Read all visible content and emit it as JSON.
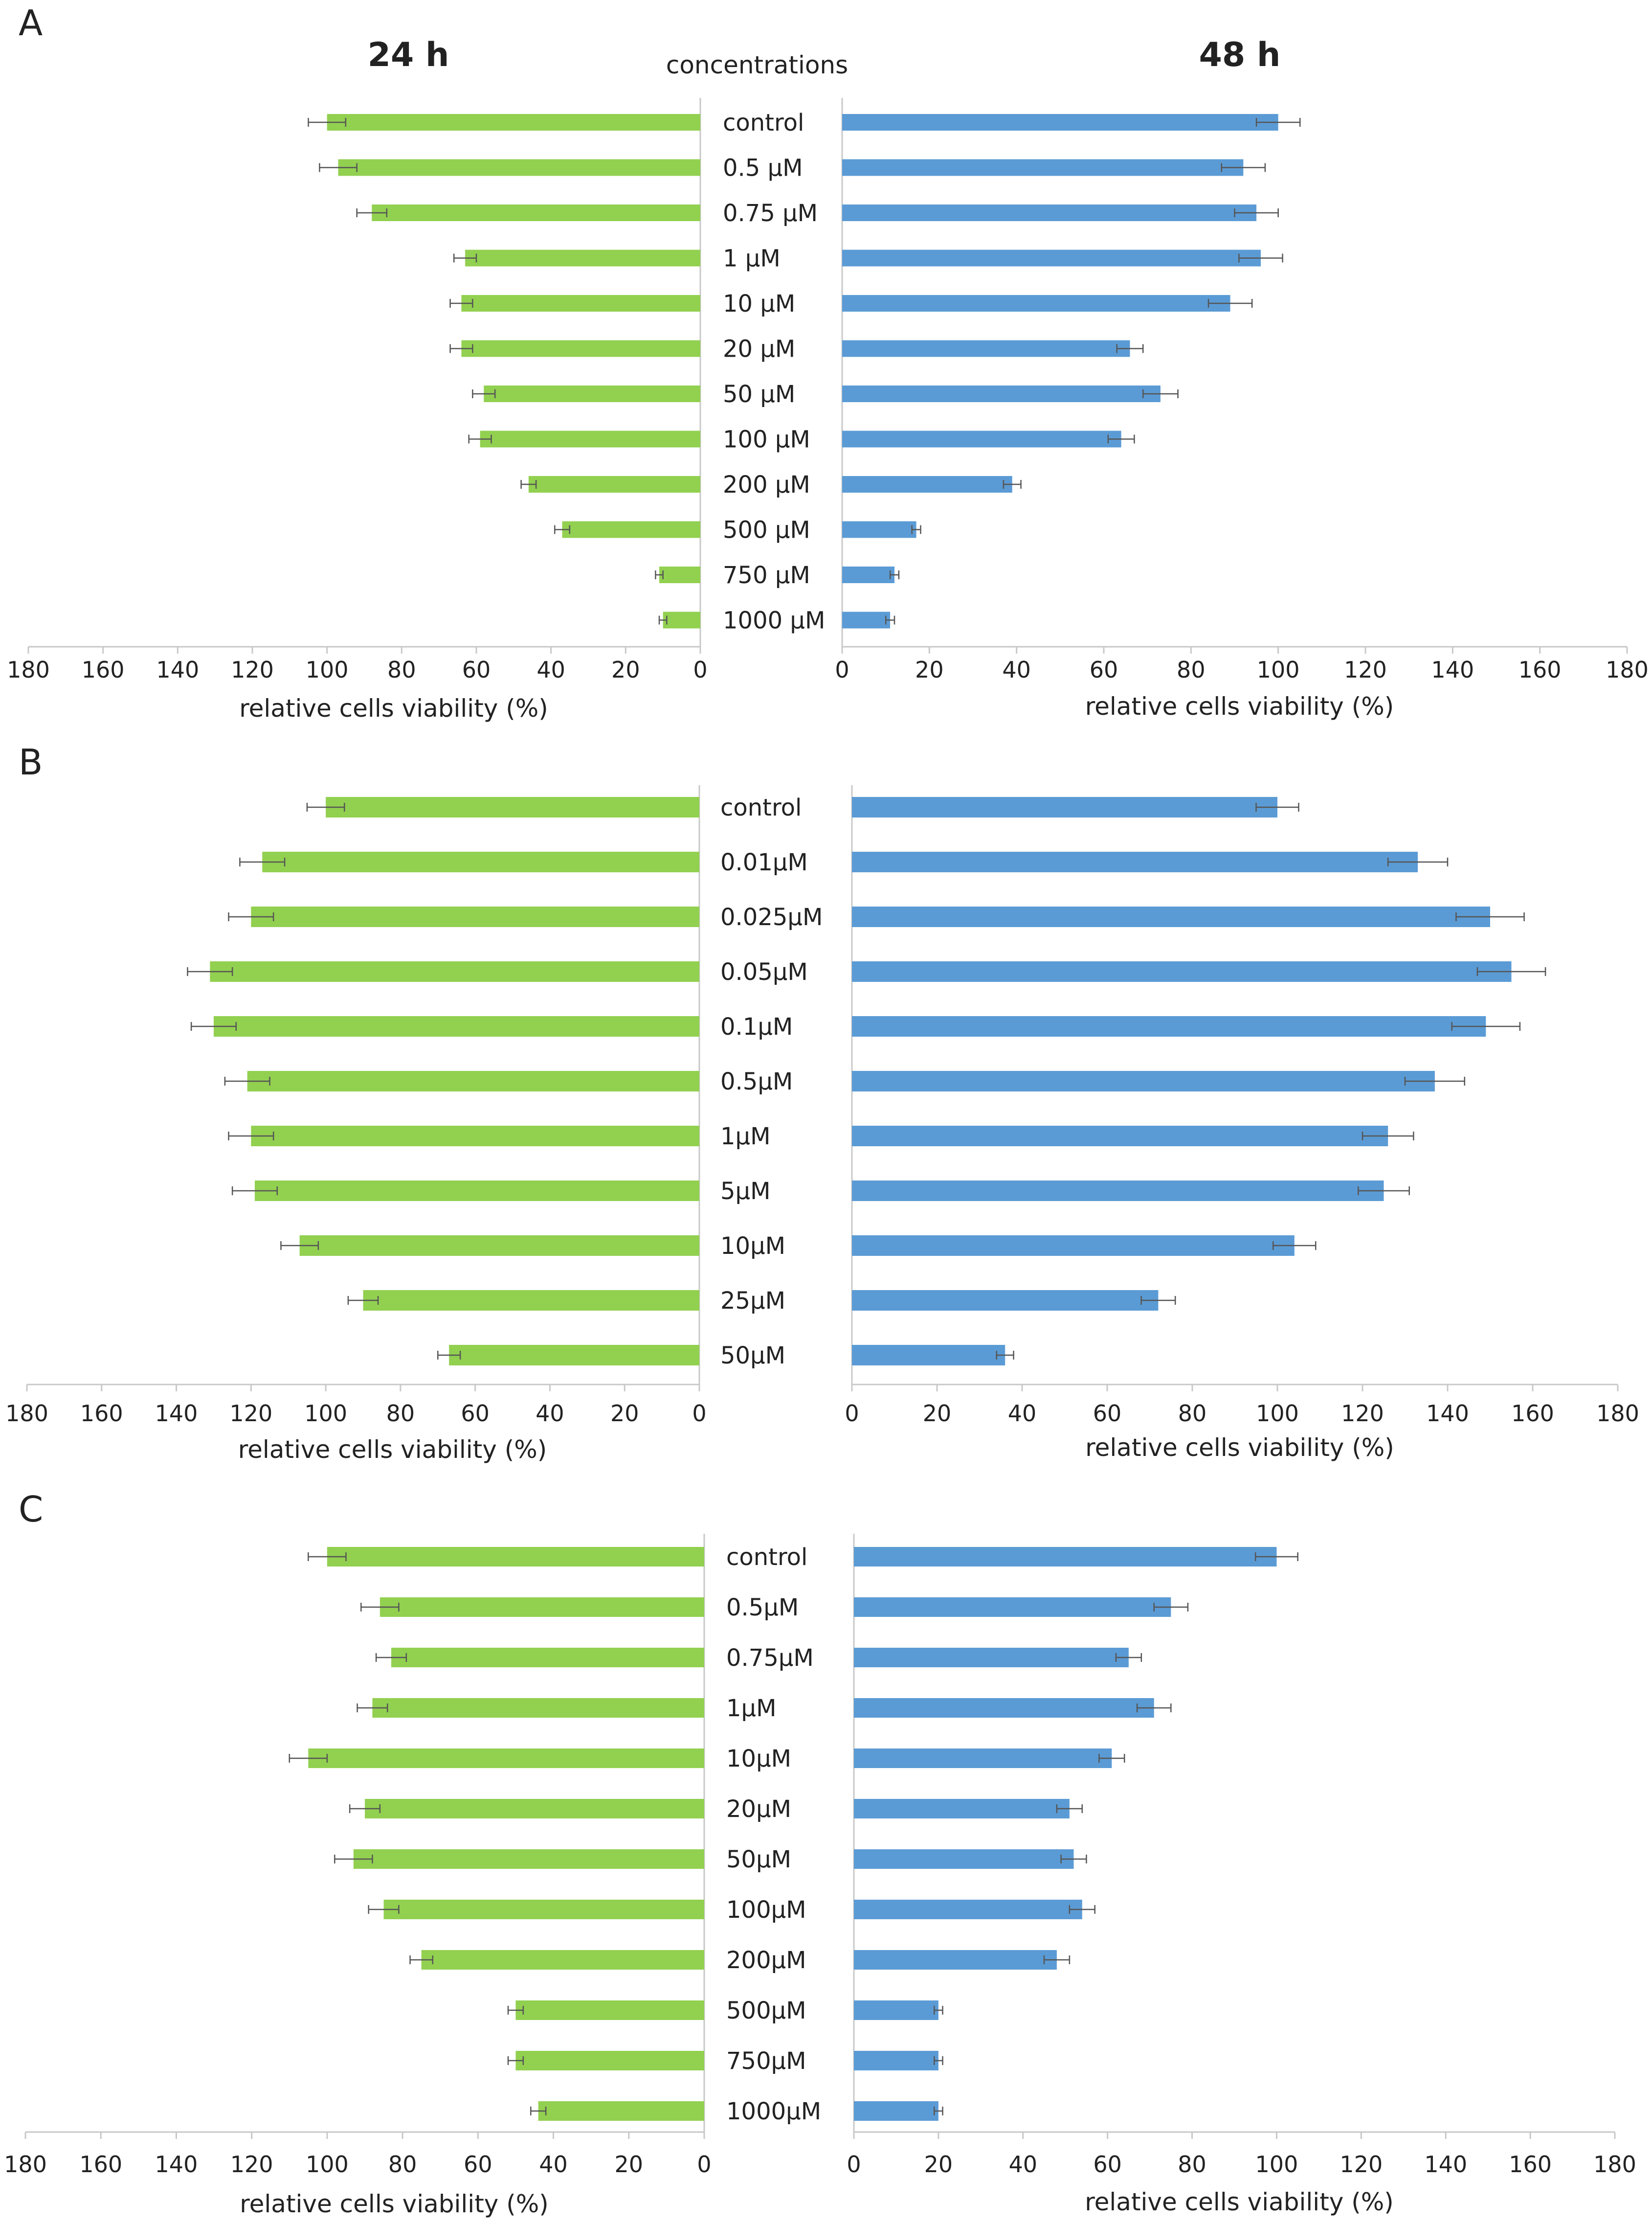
{
  "header": {
    "left_time": "24 h",
    "right_time": "48 h",
    "concentrations_label": "concentrations"
  },
  "colors": {
    "green": "#92d050",
    "blue": "#5b9bd5",
    "axis": "#c8c8c8",
    "error": "#555555"
  },
  "chart_data": [
    {
      "type": "bar",
      "panel": "A",
      "orientation": "horizontal-butterfly",
      "categories": [
        "control",
        "0.5 µM",
        "0.75 µM",
        "1 µM",
        "10 µM",
        "20 µM",
        "50 µM",
        "100 µM",
        "200 µM",
        "500 µM",
        "750 µM",
        "1000 µM"
      ],
      "series": [
        {
          "name": "24 h",
          "values": [
            100,
            97,
            88,
            63,
            64,
            64,
            58,
            59,
            46,
            37,
            11,
            10
          ],
          "errors": [
            5,
            5,
            4,
            3,
            3,
            3,
            3,
            3,
            2,
            2,
            1,
            1
          ]
        },
        {
          "name": "48 h",
          "values": [
            100,
            92,
            95,
            96,
            89,
            66,
            73,
            64,
            39,
            17,
            12,
            11
          ],
          "errors": [
            5,
            5,
            5,
            5,
            5,
            3,
            4,
            3,
            2,
            1,
            1,
            1
          ]
        }
      ],
      "xlim": [
        0,
        180
      ],
      "ticks": [
        "180",
        "160",
        "140",
        "120",
        "100",
        "80",
        "60",
        "40",
        "20",
        "0"
      ],
      "ticks_right": [
        "0",
        "20",
        "40",
        "60",
        "80",
        "100",
        "120",
        "140",
        "160",
        "180"
      ],
      "xlabel": "relative cells viability (%)"
    },
    {
      "type": "bar",
      "panel": "B",
      "orientation": "horizontal-butterfly",
      "categories": [
        "control",
        "0.01µM",
        "0.025µM",
        "0.05µM",
        "0.1µM",
        "0.5µM",
        "1µM",
        "5µM",
        "10µM",
        "25µM",
        "50µM"
      ],
      "series": [
        {
          "name": "24 h",
          "values": [
            100,
            117,
            120,
            131,
            130,
            121,
            120,
            119,
            107,
            90,
            67
          ],
          "errors": [
            5,
            6,
            6,
            6,
            6,
            6,
            6,
            6,
            5,
            4,
            3
          ]
        },
        {
          "name": "48 h",
          "values": [
            100,
            133,
            150,
            155,
            149,
            137,
            126,
            125,
            104,
            72,
            36
          ],
          "errors": [
            5,
            7,
            8,
            8,
            8,
            7,
            6,
            6,
            5,
            4,
            2
          ]
        }
      ],
      "xlim": [
        0,
        180
      ],
      "ticks": [
        "180",
        "160",
        "140",
        "120",
        "100",
        "80",
        "60",
        "40",
        "20",
        "0"
      ],
      "ticks_right": [
        "0",
        "20",
        "40",
        "60",
        "80",
        "100",
        "120",
        "140",
        "160",
        "180"
      ],
      "xlabel": "relative cells viability (%)"
    },
    {
      "type": "bar",
      "panel": "C",
      "orientation": "horizontal-butterfly",
      "categories": [
        "control",
        "0.5µM",
        "0.75µM",
        "1µM",
        "10µM",
        "20µM",
        "50µM",
        "100µM",
        "200µM",
        "500µM",
        "750µM",
        "1000µM"
      ],
      "series": [
        {
          "name": "24 h",
          "values": [
            100,
            86,
            83,
            88,
            105,
            90,
            93,
            85,
            75,
            50,
            50,
            44
          ],
          "errors": [
            5,
            5,
            4,
            4,
            5,
            4,
            5,
            4,
            3,
            2,
            2,
            2
          ]
        },
        {
          "name": "48 h",
          "values": [
            100,
            75,
            65,
            71,
            61,
            51,
            52,
            54,
            48,
            20,
            20,
            20
          ],
          "errors": [
            5,
            4,
            3,
            4,
            3,
            3,
            3,
            3,
            3,
            1,
            1,
            1
          ]
        }
      ],
      "xlim": [
        0,
        180
      ],
      "ticks": [
        "180",
        "160",
        "140",
        "120",
        "100",
        "80",
        "60",
        "40",
        "20",
        "0"
      ],
      "ticks_right": [
        "0",
        "20",
        "40",
        "60",
        "80",
        "100",
        "120",
        "140",
        "160",
        "180"
      ],
      "xlabel": "relative cells viability (%)"
    }
  ]
}
